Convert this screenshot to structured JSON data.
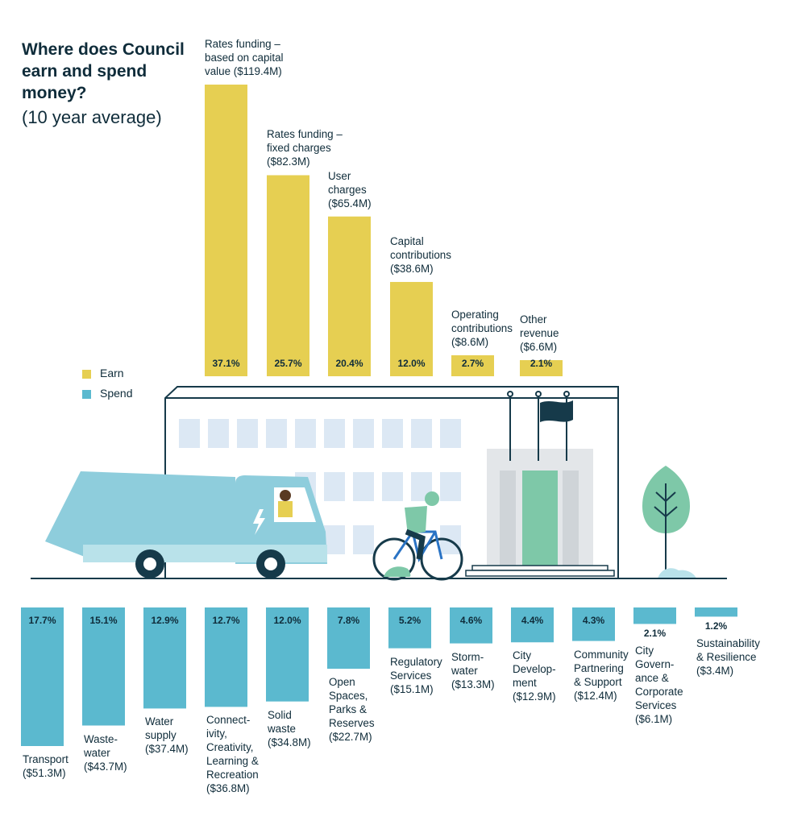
{
  "header": {
    "title": "Where does Council earn and spend money?",
    "subtitle": "(10 year average)"
  },
  "legend": [
    {
      "label": "Earn",
      "color": "#e6cf52"
    },
    {
      "label": "Spend",
      "color": "#5bb9cf"
    }
  ],
  "chart_data": [
    {
      "type": "bar",
      "series": [
        {
          "name": "Earn",
          "values": [
            119.4,
            82.3,
            65.4,
            38.6,
            8.6,
            6.6
          ]
        }
      ],
      "categories": [
        "Rates funding – based on capital value ($119.4M)",
        "Rates funding – fixed charges ($82.3M)",
        "User charges ($65.4M)",
        "Capital contributions ($38.6M)",
        "Operating contributions ($8.6M)",
        "Other revenue ($6.6M)"
      ],
      "category_lines": [
        [
          "Rates funding –",
          "based on capital",
          "value ($119.4M)"
        ],
        [
          "Rates funding –",
          "fixed charges",
          "($82.3M)"
        ],
        [
          "User",
          "charges",
          "($65.4M)"
        ],
        [
          "Capital",
          "contributions",
          "($38.6M)"
        ],
        [
          "Operating",
          "contributions",
          "($8.6M)"
        ],
        [
          "Other",
          "revenue",
          "($6.6M)"
        ]
      ],
      "data_labels": [
        "37.1%",
        "25.7%",
        "20.4%",
        "12.0%",
        "2.7%",
        "2.1%"
      ],
      "percent_values": [
        37.1,
        25.7,
        20.4,
        12.0,
        2.7,
        2.1
      ],
      "color": "#e6cf52"
    },
    {
      "type": "bar",
      "series": [
        {
          "name": "Spend",
          "values": [
            51.3,
            43.7,
            37.4,
            36.8,
            34.8,
            22.7,
            15.1,
            13.3,
            12.9,
            12.4,
            6.1,
            3.4
          ]
        }
      ],
      "categories": [
        "Transport ($51.3M)",
        "Waste-water ($43.7M)",
        "Water supply ($37.4M)",
        "Connect-ivity, Creativity, Learning & Recreation ($36.8M)",
        "Solid waste ($34.8M)",
        "Open Spaces, Parks & Reserves ($22.7M)",
        "Regulatory Services ($15.1M)",
        "Storm-water ($13.3M)",
        "City Develop-ment ($12.9M)",
        "Community Partnering & Support ($12.4M)",
        "City Govern-ance & Corporate Services ($6.1M)",
        "Sustainability & Resilience ($3.4M)"
      ],
      "category_lines": [
        [
          "Transport",
          "($51.3M)"
        ],
        [
          "Waste-",
          "water",
          "($43.7M)"
        ],
        [
          "Water",
          "supply",
          "($37.4M)"
        ],
        [
          "Connect-",
          "ivity,",
          "Creativity,",
          "Learning &",
          "Recreation",
          "($36.8M)"
        ],
        [
          "Solid",
          "waste",
          "($34.8M)"
        ],
        [
          "Open",
          "Spaces,",
          "Parks &",
          "Reserves",
          "($22.7M)"
        ],
        [
          "Regulatory",
          "Services",
          "($15.1M)"
        ],
        [
          "Storm-",
          "water",
          "($13.3M)"
        ],
        [
          "City",
          "Develop-",
          "ment",
          "($12.9M)"
        ],
        [
          "Community",
          "Partnering",
          "& Support",
          "($12.4M)"
        ],
        [
          "City",
          "Govern-",
          "ance &",
          "Corporate",
          "Services",
          "($6.1M)"
        ],
        [
          "Sustainability",
          "& Resilience",
          "($3.4M)"
        ]
      ],
      "data_labels": [
        "17.7%",
        "15.1%",
        "12.9%",
        "12.7%",
        "12.0%",
        "7.8%",
        "5.2%",
        "4.6%",
        "4.4%",
        "4.3%",
        "2.1%",
        "1.2%"
      ],
      "percent_values": [
        17.7,
        15.1,
        12.9,
        12.7,
        12.0,
        7.8,
        5.2,
        4.6,
        4.4,
        4.3,
        2.1,
        1.2
      ],
      "color": "#5bb9cf"
    }
  ],
  "illustration": {
    "icons": [
      "council-building-icon",
      "flag-icon",
      "flagpole-icon",
      "rubbish-truck-icon",
      "electric-bolt-icon",
      "cyclist-icon",
      "tree-icon",
      "shrub-icon"
    ],
    "colors": {
      "building": "#ffffff",
      "windows": "#dce8f4",
      "truck": "#8ecddc",
      "door": "#7ec8a8",
      "flag": "#163a4a"
    }
  }
}
